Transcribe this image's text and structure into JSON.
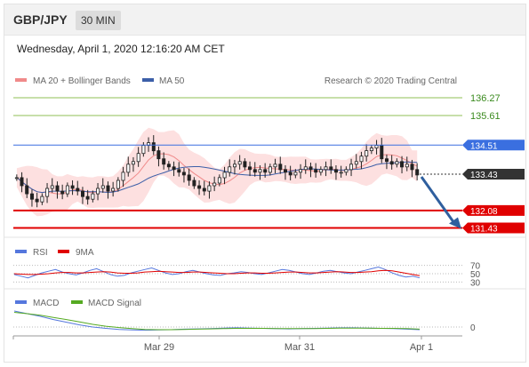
{
  "header": {
    "pair": "GBP/JPY",
    "timeframe": "30 MIN"
  },
  "datetime": "Wednesday, April 1, 2020 12:16:20 AM CET",
  "legend": {
    "bollinger": "MA 20 + Bollinger Bands",
    "ma50": "MA 50",
    "credit": "Research © 2020 Trading Central"
  },
  "colors": {
    "bollinger": "#f08a8a",
    "ma50": "#3c5fa8",
    "resistance": "#8fbf54",
    "pivot": "#3a6fe0",
    "support": "#e00000",
    "current": "#333333",
    "rsi": "#5577dd",
    "macd": "#5577dd",
    "macd_signal": "#55aa22"
  },
  "levels": [
    {
      "value": 136.27,
      "label": "136.27",
      "kind": "resistance"
    },
    {
      "value": 135.61,
      "label": "135.61",
      "kind": "resistance"
    },
    {
      "value": 134.51,
      "label": "134.51",
      "kind": "pivot"
    },
    {
      "value": 133.43,
      "label": "133.43",
      "kind": "current"
    },
    {
      "value": 132.08,
      "label": "132.08",
      "kind": "support"
    },
    {
      "value": 131.43,
      "label": "131.43",
      "kind": "support"
    }
  ],
  "rsi_panel": {
    "legend_rsi": "RSI",
    "legend_ma": "9MA",
    "ticks": [
      "70",
      "50",
      "30"
    ]
  },
  "macd_panel": {
    "legend_macd": "MACD",
    "legend_signal": "MACD Signal",
    "ticks": [
      "0"
    ]
  },
  "x_axis": {
    "labels": [
      "Mar 29",
      "Mar 31",
      "Apr 1"
    ]
  },
  "chart_data": {
    "type": "candlestick",
    "ylim": [
      131.25,
      136.6
    ],
    "price_path": [
      133.3,
      133.0,
      132.7,
      132.5,
      132.4,
      132.6,
      132.9,
      133.0,
      132.8,
      132.7,
      133.0,
      132.9,
      132.8,
      132.6,
      132.5,
      132.7,
      132.9,
      133.0,
      132.8,
      132.9,
      133.2,
      133.5,
      133.8,
      133.9,
      134.2,
      134.5,
      134.6,
      134.3,
      134.0,
      133.8,
      133.7,
      133.6,
      133.5,
      133.4,
      133.2,
      133.0,
      132.9,
      132.8,
      133.0,
      133.1,
      133.3,
      133.5,
      133.7,
      133.8,
      133.9,
      133.7,
      133.6,
      133.5,
      133.6,
      133.5,
      133.7,
      133.8,
      133.6,
      133.5,
      133.4,
      133.5,
      133.6,
      133.7,
      133.6,
      133.5,
      133.6,
      133.7,
      133.6,
      133.5,
      133.5,
      133.6,
      133.8,
      133.9,
      134.1,
      134.3,
      134.4,
      134.5,
      134.0,
      133.9,
      133.8,
      133.9,
      133.7,
      133.8,
      133.6,
      133.4
    ],
    "forecast": {
      "from": 133.43,
      "to": 131.43
    },
    "rsi": [
      48,
      44,
      40,
      46,
      52,
      56,
      60,
      54,
      50,
      47,
      52,
      58,
      62,
      55,
      48,
      44,
      46,
      52,
      56,
      60,
      64,
      58,
      52,
      48,
      50,
      55,
      58,
      54,
      50,
      47,
      46,
      50,
      52,
      55,
      53,
      50,
      48,
      52,
      56,
      60,
      58,
      54,
      50,
      48,
      52,
      56,
      58,
      55,
      52,
      50,
      54,
      58,
      62,
      66,
      60,
      52,
      46,
      42,
      44,
      40
    ],
    "rsi_ma": [
      50,
      49,
      48,
      48,
      49,
      50,
      52,
      53,
      53,
      52,
      52,
      53,
      54,
      55,
      54,
      52,
      51,
      51,
      52,
      54,
      55,
      56,
      55,
      54,
      53,
      53,
      54,
      54,
      53,
      52,
      51,
      50,
      50,
      51,
      52,
      52,
      51,
      51,
      52,
      53,
      54,
      54,
      53,
      52,
      52,
      53,
      54,
      55,
      54,
      53,
      53,
      54,
      55,
      57,
      58,
      57,
      54,
      51,
      48,
      45
    ],
    "macd": [
      0.6,
      0.5,
      0.4,
      0.28,
      0.18,
      0.08,
      0.0,
      -0.05,
      -0.09,
      -0.11,
      -0.12,
      -0.11,
      -0.1,
      -0.08,
      -0.07,
      -0.06,
      -0.04,
      -0.03,
      -0.04,
      -0.05,
      -0.06,
      -0.07,
      -0.06,
      -0.05,
      -0.04,
      -0.03,
      -0.03,
      -0.04,
      -0.05,
      -0.06,
      -0.08,
      -0.1
    ],
    "macd_signal": [
      0.55,
      0.5,
      0.44,
      0.36,
      0.28,
      0.19,
      0.1,
      0.03,
      -0.02,
      -0.06,
      -0.09,
      -0.1,
      -0.1,
      -0.09,
      -0.08,
      -0.07,
      -0.06,
      -0.05,
      -0.05,
      -0.05,
      -0.06,
      -0.06,
      -0.06,
      -0.06,
      -0.05,
      -0.04,
      -0.04,
      -0.04,
      -0.05,
      -0.05,
      -0.06,
      -0.08
    ]
  }
}
